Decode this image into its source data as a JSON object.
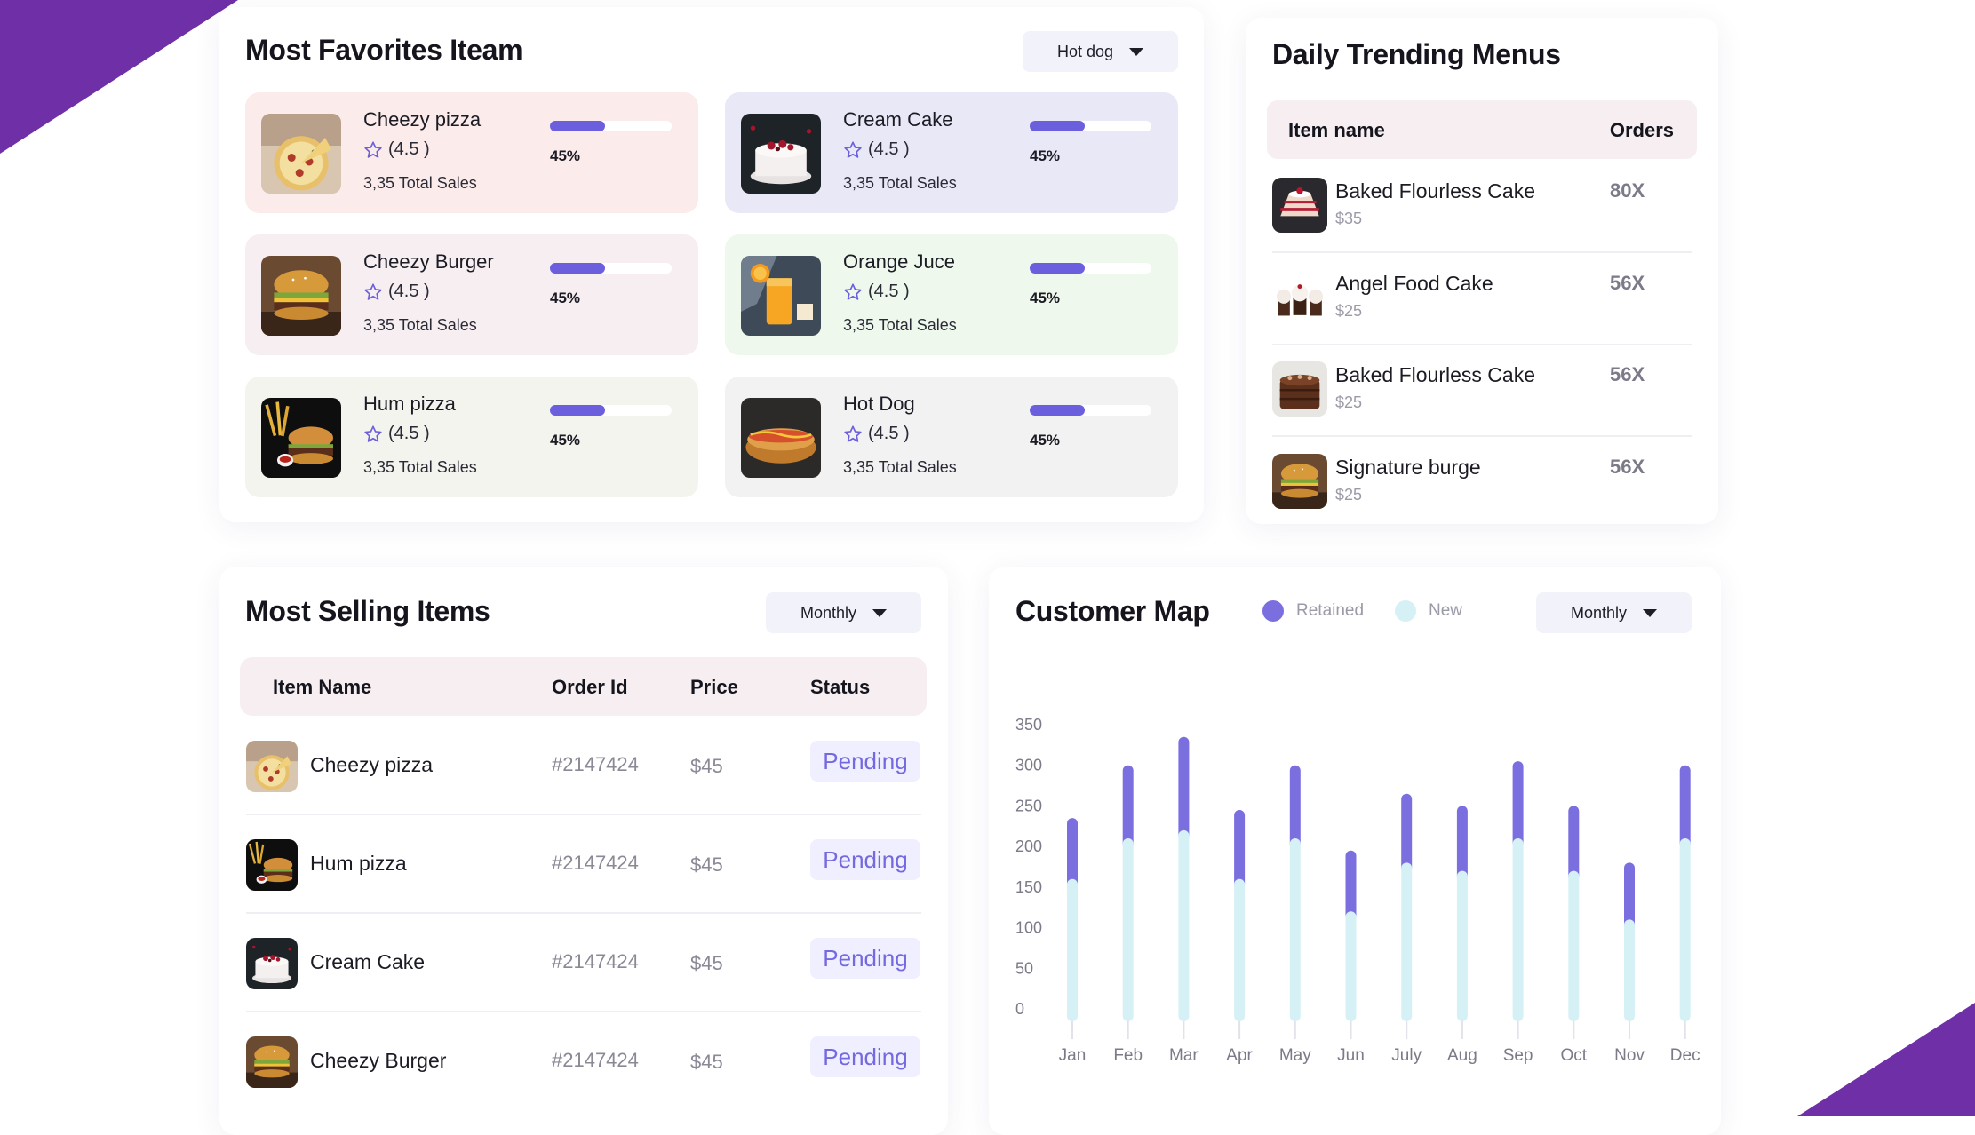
{
  "colors": {
    "accent": "#6b5fdd",
    "brand_purple": "#6f2fa6",
    "retained": "#7b6fe0",
    "new": "#d6f1f5",
    "pending_text": "#7569e0"
  },
  "favorites": {
    "title": "Most Favorites Iteam",
    "filter_value": "Hot dog",
    "items": [
      {
        "name": "Cheezy pizza",
        "rating": "(4.5 )",
        "sales": "3,35 Total Sales",
        "progress": 45,
        "percent": "45%",
        "bg": "#fbeceb",
        "icon": "pizza-photo"
      },
      {
        "name": "Cream Cake",
        "rating": "(4.5 )",
        "sales": "3,35 Total Sales",
        "progress": 45,
        "percent": "45%",
        "bg": "#e9e8f7",
        "icon": "cake-photo"
      },
      {
        "name": "Cheezy Burger",
        "rating": "(4.5 )",
        "sales": "3,35 Total Sales",
        "progress": 45,
        "percent": "45%",
        "bg": "#f7eef1",
        "icon": "burger-photo"
      },
      {
        "name": "Orange Juce",
        "rating": "(4.5 )",
        "sales": "3,35 Total Sales",
        "progress": 45,
        "percent": "45%",
        "bg": "#eef8ec",
        "icon": "juice-photo"
      },
      {
        "name": "Hum pizza",
        "rating": "(4.5 )",
        "sales": "3,35 Total Sales",
        "progress": 45,
        "percent": "45%",
        "bg": "#f4f4ef",
        "icon": "burger-fries-photo"
      },
      {
        "name": "Hot Dog",
        "rating": "(4.5 )",
        "sales": "3,35 Total Sales",
        "progress": 45,
        "percent": "45%",
        "bg": "#f2f2f2",
        "icon": "hotdog-photo"
      }
    ]
  },
  "trending": {
    "title": "Daily Trending Menus",
    "col_item": "Item name",
    "col_orders": "Orders",
    "items": [
      {
        "name": "Baked Flourless Cake",
        "price": "$35",
        "orders": "80X",
        "icon": "cake-slice-photo"
      },
      {
        "name": "Angel Food Cake",
        "price": "$25",
        "orders": "56X",
        "icon": "cupcakes-photo"
      },
      {
        "name": "Baked Flourless Cake",
        "price": "$25",
        "orders": "56X",
        "icon": "chocolate-cake-photo"
      },
      {
        "name": "Signature burge",
        "price": "$25",
        "orders": "56X",
        "icon": "burger-photo"
      }
    ]
  },
  "selling": {
    "title": "Most Selling Items",
    "filter_value": "Monthly",
    "columns": {
      "item": "Item Name",
      "order": "Order Id",
      "price": "Price",
      "status": "Status"
    },
    "rows": [
      {
        "name": "Cheezy pizza",
        "order_id": "#2147424",
        "price": "$45",
        "status": "Pending",
        "icon": "pizza-photo"
      },
      {
        "name": "Hum pizza",
        "order_id": "#2147424",
        "price": "$45",
        "status": "Pending",
        "icon": "burger-fries-photo"
      },
      {
        "name": "Cream Cake",
        "order_id": "#2147424",
        "price": "$45",
        "status": "Pending",
        "icon": "cake-photo"
      },
      {
        "name": "Cheezy Burger",
        "order_id": "#2147424",
        "price": "$45",
        "status": "Pending",
        "icon": "burger-photo"
      }
    ]
  },
  "customer_map": {
    "title": "Customer Map",
    "legend_retained": "Retained",
    "legend_new": "New",
    "filter_value": "Monthly"
  },
  "chart_data": {
    "type": "bar",
    "title": "Customer Map",
    "categories": [
      "Jan",
      "Feb",
      "Mar",
      "Apr",
      "May",
      "Jun",
      "July",
      "Aug",
      "Sep",
      "Oct",
      "Nov",
      "Dec"
    ],
    "series": [
      {
        "name": "New",
        "values": [
          160,
          210,
          220,
          160,
          210,
          120,
          180,
          170,
          210,
          170,
          110,
          210
        ]
      },
      {
        "name": "Retained",
        "values": [
          75,
          90,
          115,
          85,
          90,
          75,
          85,
          80,
          95,
          80,
          70,
          90
        ]
      }
    ],
    "y_ticks": [
      "0",
      "50",
      "100",
      "150",
      "200",
      "250",
      "300",
      "350"
    ],
    "ylim": [
      0,
      350
    ],
    "stacked": true
  }
}
